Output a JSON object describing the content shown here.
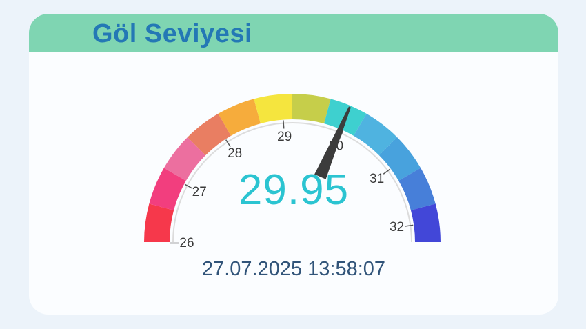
{
  "page": {
    "background": "#ecf3fa"
  },
  "card": {
    "title": "Göl Seviyesi",
    "title_color": "#2478b5",
    "header_bg": "#7fd5b2",
    "body_bg": "#fbfdff",
    "timestamp": "27.07.2025 13:58:07",
    "timestamp_color": "#315479"
  },
  "chart_data": {
    "type": "gauge",
    "title": "Göl Seviyesi",
    "value": 29.95,
    "value_label": "29.95",
    "min": 26,
    "max": 32,
    "tick_values": [
      26,
      27,
      28,
      29,
      30,
      31,
      32
    ],
    "segments": [
      {
        "from": 26.0,
        "to": 26.5,
        "color": "#f6384b"
      },
      {
        "from": 26.5,
        "to": 27.0,
        "color": "#f23e7e"
      },
      {
        "from": 27.0,
        "to": 27.5,
        "color": "#ec6f9f"
      },
      {
        "from": 27.5,
        "to": 28.0,
        "color": "#e97e62"
      },
      {
        "from": 28.0,
        "to": 28.5,
        "color": "#f6ac3c"
      },
      {
        "from": 28.5,
        "to": 29.0,
        "color": "#f5e53e"
      },
      {
        "from": 29.0,
        "to": 29.5,
        "color": "#c6ce4a"
      },
      {
        "from": 29.5,
        "to": 30.0,
        "color": "#3ed0cf"
      },
      {
        "from": 30.0,
        "to": 30.5,
        "color": "#4fb3e0"
      },
      {
        "from": 30.5,
        "to": 31.0,
        "color": "#48a2dd"
      },
      {
        "from": 31.0,
        "to": 31.5,
        "color": "#477fd9"
      },
      {
        "from": 31.5,
        "to": 32.0,
        "color": "#4247d8"
      }
    ],
    "value_color": "#2bc4d1",
    "needle_color": "#3c3c3c",
    "tick_label_color": "#3a3a3a",
    "tick_mark_color": "#555555",
    "inner_arc_color": "#dcdcdc",
    "legend": "none",
    "orientation": "semicircle"
  }
}
